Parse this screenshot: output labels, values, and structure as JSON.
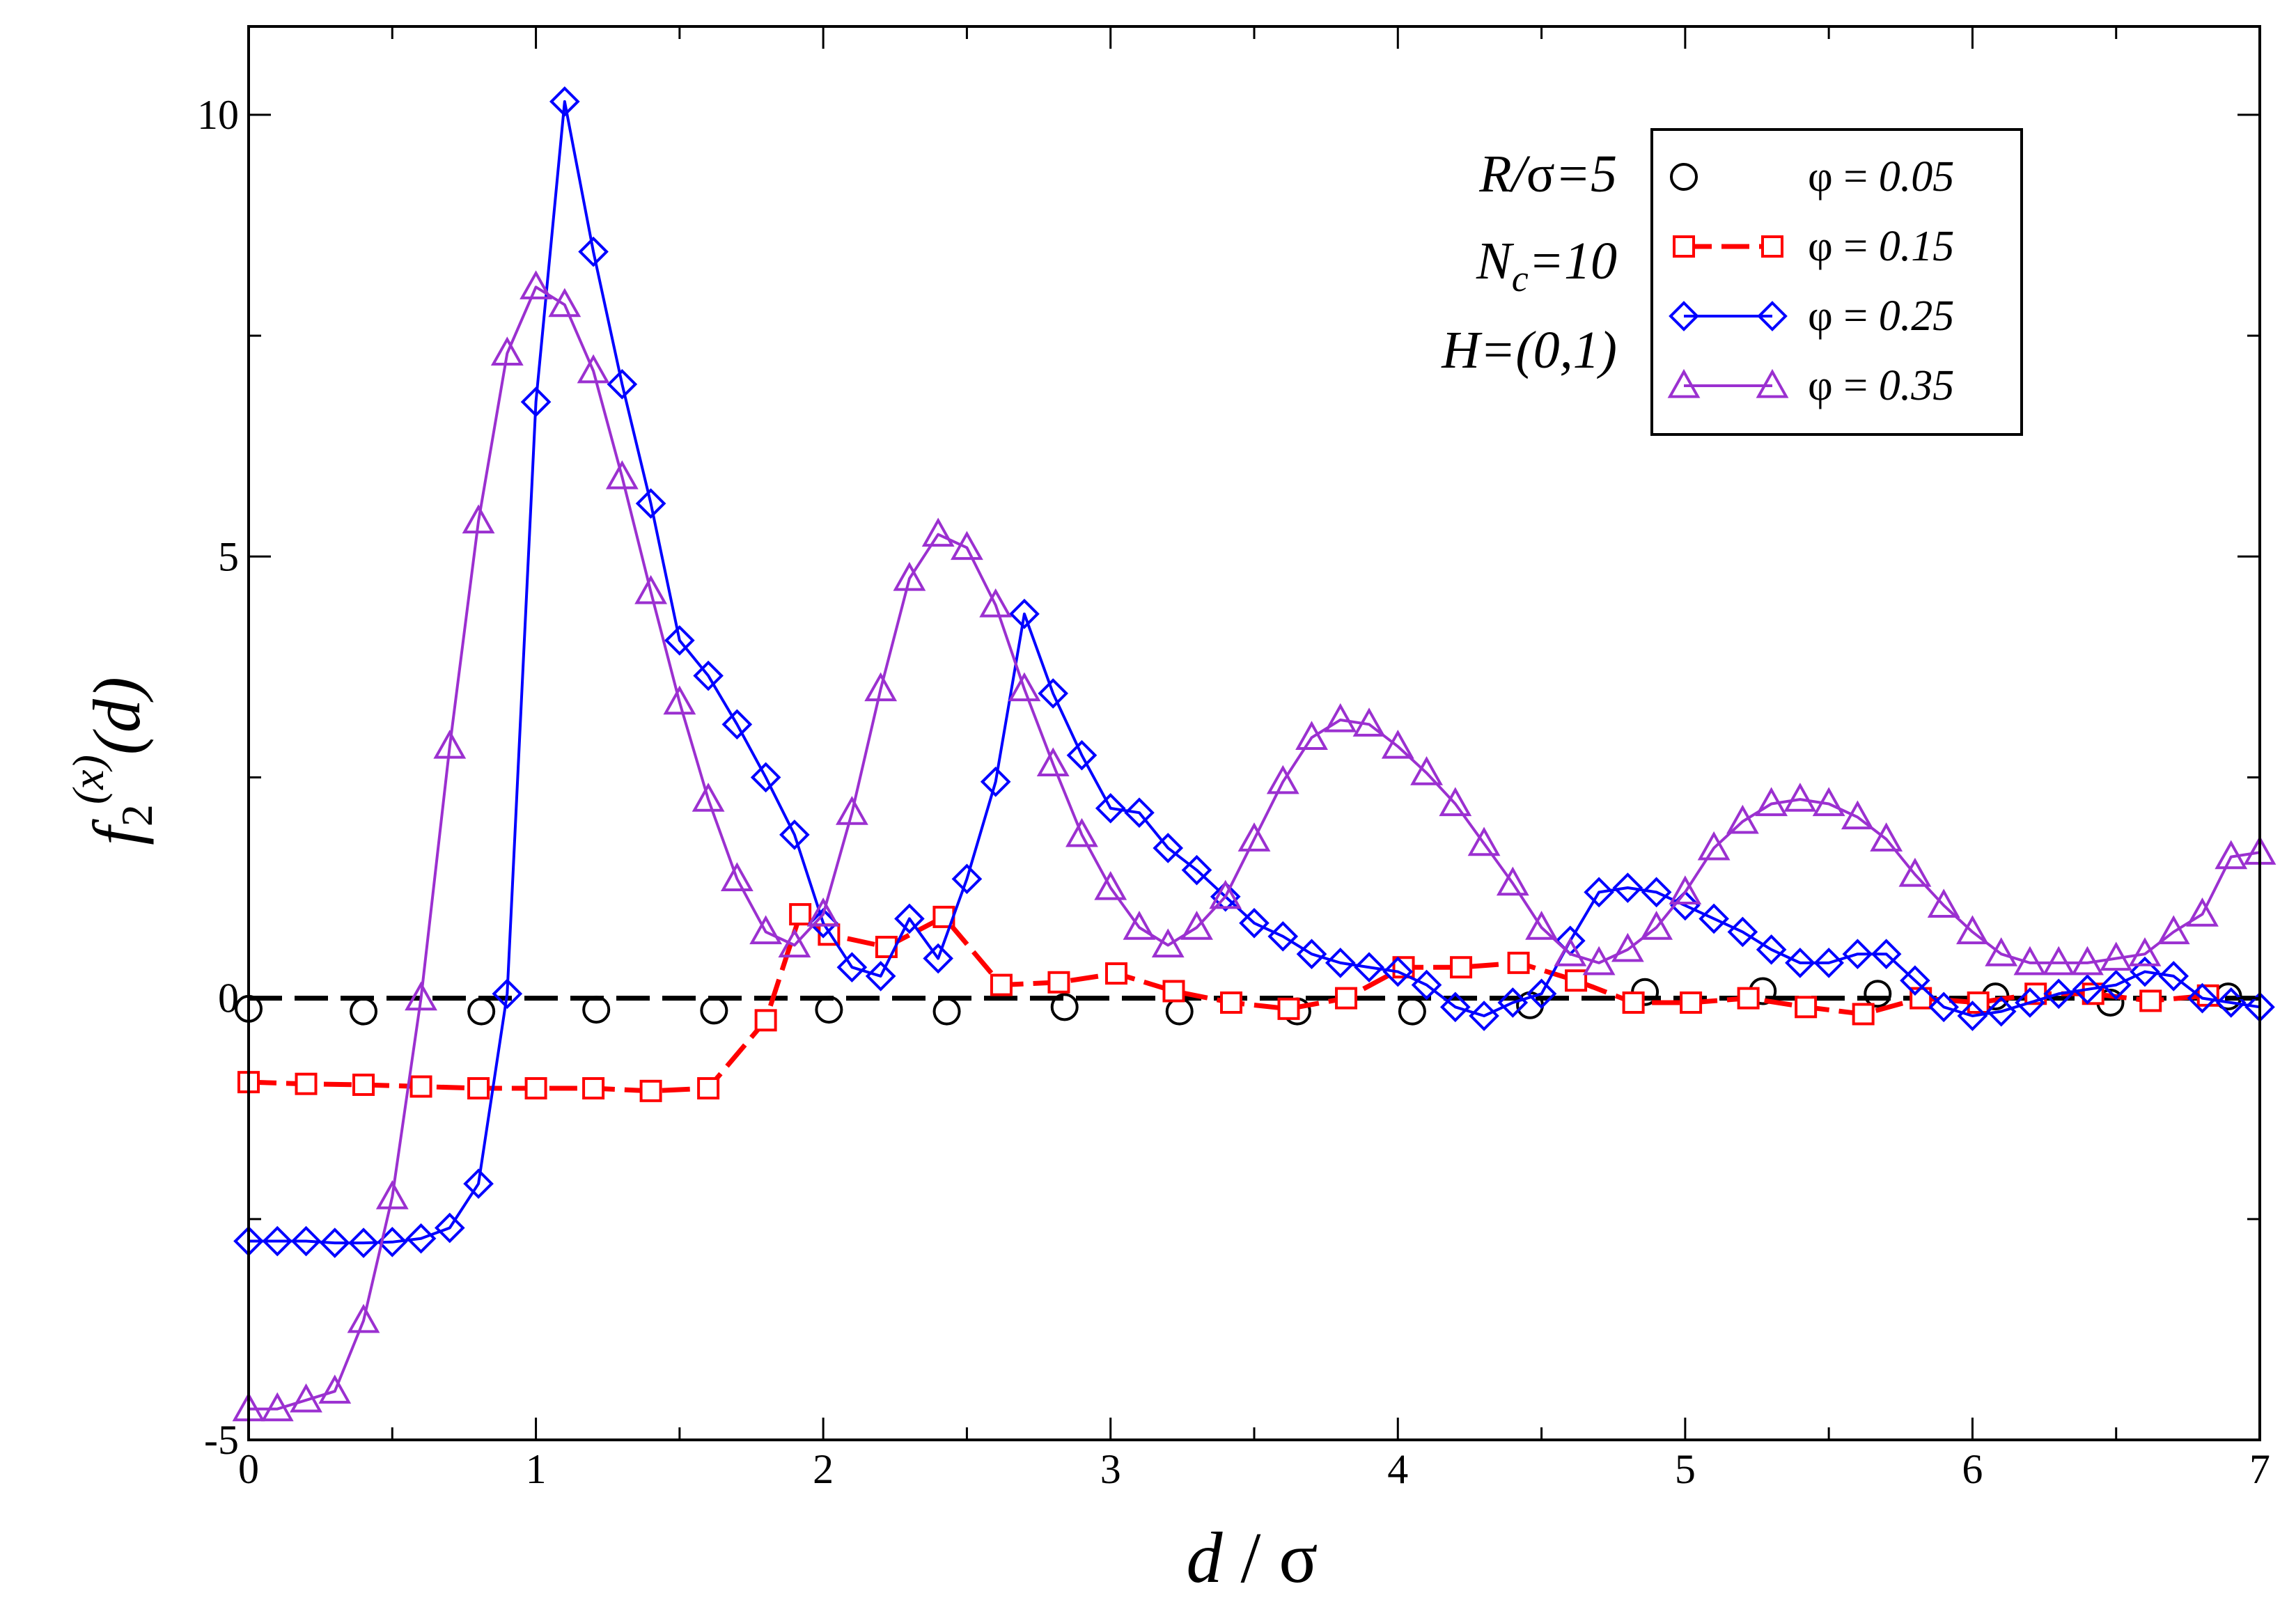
{
  "chart_data": {
    "type": "line",
    "title": "",
    "xlabel": "d / σ",
    "ylabel": "f2(x)(d)",
    "ylabel_parts": {
      "base": "f",
      "sub": "2",
      "sup": "(x)",
      "arg": "(d)"
    },
    "xlabel_parts": {
      "left": "d",
      "slash": " / ",
      "right": "σ"
    },
    "xlim": [
      0,
      7
    ],
    "ylim": [
      -5,
      11
    ],
    "xticks": [
      0,
      1,
      2,
      3,
      4,
      5,
      6,
      7
    ],
    "xtick_labels": [
      "0",
      "1",
      "2",
      "3",
      "4",
      "5",
      "6",
      "7"
    ],
    "yticks": [
      -5,
      0,
      5,
      10
    ],
    "ytick_labels": [
      "-5",
      "0",
      "5",
      "10"
    ],
    "legend_position": "top-right",
    "annotations": [
      {
        "plain": "",
        "italic": "R/",
        "greek": "σ",
        "tail": "=5"
      },
      {
        "plain": "",
        "italic": "N",
        "sub": "c",
        "tail": "=10"
      },
      {
        "plain": "",
        "italic": "H=(0,1)"
      }
    ],
    "annotation_lines": [
      "R/σ=5",
      "Nc=10",
      "H=(0,1)"
    ],
    "reference_line": {
      "y": 0,
      "style": "dashed",
      "color": "#000000"
    },
    "series": [
      {
        "name": "φ = 0.05",
        "label_prefix": "φ = ",
        "label_value": "0.05",
        "color": "#000000",
        "marker": "circle",
        "line": "none",
        "x": [
          0.0,
          0.4,
          0.81,
          1.21,
          1.62,
          2.02,
          2.43,
          2.84,
          3.24,
          3.65,
          4.05,
          4.46,
          4.86,
          5.27,
          5.67,
          6.08,
          6.48,
          6.89
        ],
        "values": [
          -0.12,
          -0.15,
          -0.15,
          -0.13,
          -0.14,
          -0.13,
          -0.15,
          -0.1,
          -0.15,
          -0.15,
          -0.15,
          -0.08,
          0.07,
          0.08,
          0.05,
          0.02,
          -0.05,
          0.02
        ]
      },
      {
        "name": "φ = 0.15",
        "label_prefix": "φ = ",
        "label_value": "0.15",
        "color": "#ff0000",
        "marker": "square",
        "line": "dashed",
        "x": [
          0.0,
          0.2,
          0.4,
          0.6,
          0.8,
          1.0,
          1.2,
          1.4,
          1.6,
          1.8,
          1.92,
          2.02,
          2.22,
          2.42,
          2.62,
          2.82,
          3.02,
          3.22,
          3.42,
          3.62,
          3.82,
          4.02,
          4.22,
          4.42,
          4.62,
          4.82,
          5.02,
          5.22,
          5.42,
          5.62,
          5.82,
          6.02,
          6.22,
          6.42,
          6.62,
          6.82
        ],
        "values": [
          -0.95,
          -0.97,
          -0.98,
          -1.0,
          -1.02,
          -1.02,
          -1.02,
          -1.05,
          -1.02,
          -0.25,
          0.95,
          0.72,
          0.58,
          0.92,
          0.15,
          0.18,
          0.28,
          0.08,
          -0.05,
          -0.12,
          0.0,
          0.35,
          0.35,
          0.4,
          0.2,
          -0.05,
          -0.05,
          0.0,
          -0.1,
          -0.18,
          0.0,
          -0.05,
          0.05,
          0.05,
          -0.03,
          0.03
        ]
      },
      {
        "name": "φ = 0.25",
        "label_prefix": "φ = ",
        "label_value": "0.25",
        "color": "#0000ff",
        "marker": "diamond",
        "line": "solid",
        "x": [
          0.0,
          0.1,
          0.2,
          0.3,
          0.4,
          0.5,
          0.6,
          0.7,
          0.8,
          0.9,
          1.0,
          1.1,
          1.2,
          1.3,
          1.4,
          1.5,
          1.6,
          1.7,
          1.8,
          1.9,
          2.0,
          2.1,
          2.2,
          2.3,
          2.4,
          2.5,
          2.6,
          2.7,
          2.8,
          2.9,
          3.0,
          3.1,
          3.2,
          3.3,
          3.4,
          3.5,
          3.6,
          3.7,
          3.8,
          3.9,
          4.0,
          4.1,
          4.2,
          4.3,
          4.4,
          4.5,
          4.6,
          4.7,
          4.8,
          4.9,
          5.0,
          5.1,
          5.2,
          5.3,
          5.4,
          5.5,
          5.6,
          5.7,
          5.8,
          5.9,
          6.0,
          6.1,
          6.2,
          6.3,
          6.4,
          6.5,
          6.6,
          6.7,
          6.8,
          6.9,
          7.0
        ],
        "values": [
          -2.75,
          -2.75,
          -2.75,
          -2.77,
          -2.77,
          -2.76,
          -2.72,
          -2.6,
          -2.1,
          0.05,
          6.75,
          10.15,
          8.45,
          6.95,
          5.6,
          4.05,
          3.65,
          3.1,
          2.5,
          1.85,
          0.85,
          0.35,
          0.25,
          0.9,
          0.45,
          1.35,
          2.45,
          4.35,
          3.45,
          2.75,
          2.15,
          2.1,
          1.7,
          1.45,
          1.15,
          0.85,
          0.7,
          0.5,
          0.4,
          0.35,
          0.3,
          0.15,
          -0.1,
          -0.2,
          -0.05,
          0.05,
          0.65,
          1.2,
          1.25,
          1.2,
          1.05,
          0.9,
          0.75,
          0.55,
          0.4,
          0.4,
          0.5,
          0.5,
          0.2,
          -0.1,
          -0.2,
          -0.15,
          -0.05,
          0.05,
          0.1,
          0.15,
          0.3,
          0.25,
          0.0,
          -0.05,
          -0.1
        ]
      },
      {
        "name": "φ = 0.35",
        "label_prefix": "φ = ",
        "label_value": "0.35",
        "color": "#9b30d0",
        "marker": "triangle",
        "line": "solid",
        "x": [
          0.0,
          0.1,
          0.2,
          0.3,
          0.4,
          0.5,
          0.6,
          0.7,
          0.8,
          0.9,
          1.0,
          1.1,
          1.2,
          1.3,
          1.4,
          1.5,
          1.6,
          1.7,
          1.8,
          1.9,
          2.0,
          2.1,
          2.2,
          2.3,
          2.4,
          2.5,
          2.6,
          2.7,
          2.8,
          2.9,
          3.0,
          3.1,
          3.2,
          3.3,
          3.4,
          3.5,
          3.6,
          3.7,
          3.8,
          3.9,
          4.0,
          4.1,
          4.2,
          4.3,
          4.4,
          4.5,
          4.6,
          4.7,
          4.8,
          4.9,
          5.0,
          5.1,
          5.2,
          5.3,
          5.4,
          5.5,
          5.6,
          5.7,
          5.8,
          5.9,
          6.0,
          6.1,
          6.2,
          6.3,
          6.4,
          6.5,
          6.6,
          6.7,
          6.8,
          6.9,
          7.0
        ],
        "values": [
          -4.65,
          -4.65,
          -4.55,
          -4.45,
          -3.65,
          -2.25,
          0.0,
          2.85,
          5.4,
          7.3,
          8.05,
          7.85,
          7.1,
          5.9,
          4.6,
          3.35,
          2.25,
          1.35,
          0.75,
          0.6,
          0.95,
          2.1,
          3.5,
          4.75,
          5.25,
          5.1,
          4.45,
          3.5,
          2.65,
          1.85,
          1.25,
          0.8,
          0.6,
          0.8,
          1.15,
          1.8,
          2.45,
          2.95,
          3.15,
          3.1,
          2.85,
          2.55,
          2.2,
          1.75,
          1.3,
          0.8,
          0.5,
          0.4,
          0.55,
          0.8,
          1.2,
          1.7,
          2.0,
          2.2,
          2.25,
          2.2,
          2.05,
          1.8,
          1.4,
          1.05,
          0.75,
          0.5,
          0.4,
          0.4,
          0.4,
          0.45,
          0.5,
          0.75,
          0.95,
          1.6,
          1.65
        ]
      }
    ]
  }
}
